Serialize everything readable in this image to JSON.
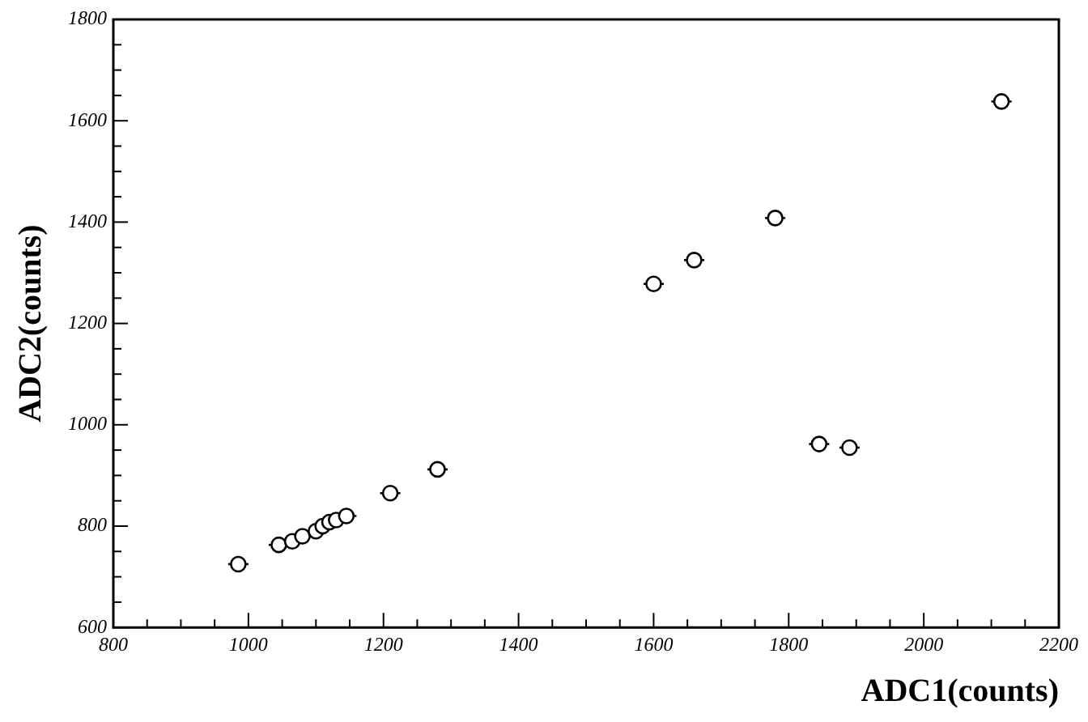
{
  "chart_data": {
    "type": "scatter",
    "xlabel": "ADC1(counts)",
    "ylabel": "ADC2(counts)",
    "x": [
      985,
      1045,
      1065,
      1080,
      1100,
      1110,
      1120,
      1130,
      1145,
      1210,
      1280,
      1600,
      1660,
      1780,
      1845,
      1890,
      2115
    ],
    "values": [
      725,
      763,
      770,
      780,
      790,
      800,
      808,
      812,
      820,
      865,
      912,
      1278,
      1325,
      1408,
      962,
      955,
      1638
    ],
    "xerrors": [
      15,
      15,
      15,
      15,
      15,
      15,
      15,
      15,
      15,
      15,
      15,
      15,
      15,
      15,
      15,
      15,
      15
    ],
    "color": "#000000",
    "marker": "circle",
    "grid": false,
    "legend": false,
    "xlim": [
      800,
      2200
    ],
    "ylim": [
      600,
      1800
    ],
    "xticks": [
      800,
      {
        "value": 850,
        "label": null
      },
      {
        "value": 900,
        "label": null
      },
      {
        "value": 950,
        "label": null
      },
      1000,
      {
        "value": 1050,
        "label": null
      },
      {
        "value": 1100,
        "label": null
      },
      {
        "value": 1150,
        "label": null
      },
      1200,
      {
        "value": 1250,
        "label": null
      },
      {
        "value": 1300,
        "label": null
      },
      {
        "value": 1350,
        "label": null
      },
      1400,
      {
        "value": 1450,
        "label": null
      },
      {
        "value": 1500,
        "label": null
      },
      {
        "value": 1550,
        "label": null
      },
      1600,
      {
        "value": 1650,
        "label": null
      },
      {
        "value": 1700,
        "label": null
      },
      {
        "value": 1750,
        "label": null
      },
      1800,
      {
        "value": 1850,
        "label": null
      },
      {
        "value": 1900,
        "label": null
      },
      {
        "value": 1950,
        "label": null
      },
      2000,
      {
        "value": 2050,
        "label": null
      },
      {
        "value": 2100,
        "label": null
      },
      {
        "value": 2150,
        "label": null
      },
      2200
    ],
    "yticks": [
      600,
      {
        "value": 650,
        "label": null
      },
      {
        "value": 700,
        "label": null
      },
      {
        "value": 750,
        "label": null
      },
      800,
      {
        "value": 850,
        "label": null
      },
      {
        "value": 900,
        "label": null
      },
      {
        "value": 950,
        "label": null
      },
      1000,
      {
        "value": 1050,
        "label": null
      },
      {
        "value": 1100,
        "label": null
      },
      {
        "value": 1150,
        "label": null
      },
      1200,
      {
        "value": 1250,
        "label": null
      },
      {
        "value": 1300,
        "label": null
      },
      {
        "value": 1350,
        "label": null
      },
      1400,
      {
        "value": 1450,
        "label": null
      },
      {
        "value": 1500,
        "label": null
      },
      {
        "value": 1550,
        "label": null
      },
      1600,
      {
        "value": 1650,
        "label": null
      },
      {
        "value": 1700,
        "label": null
      },
      {
        "value": 1750,
        "label": null
      },
      1800
    ]
  }
}
